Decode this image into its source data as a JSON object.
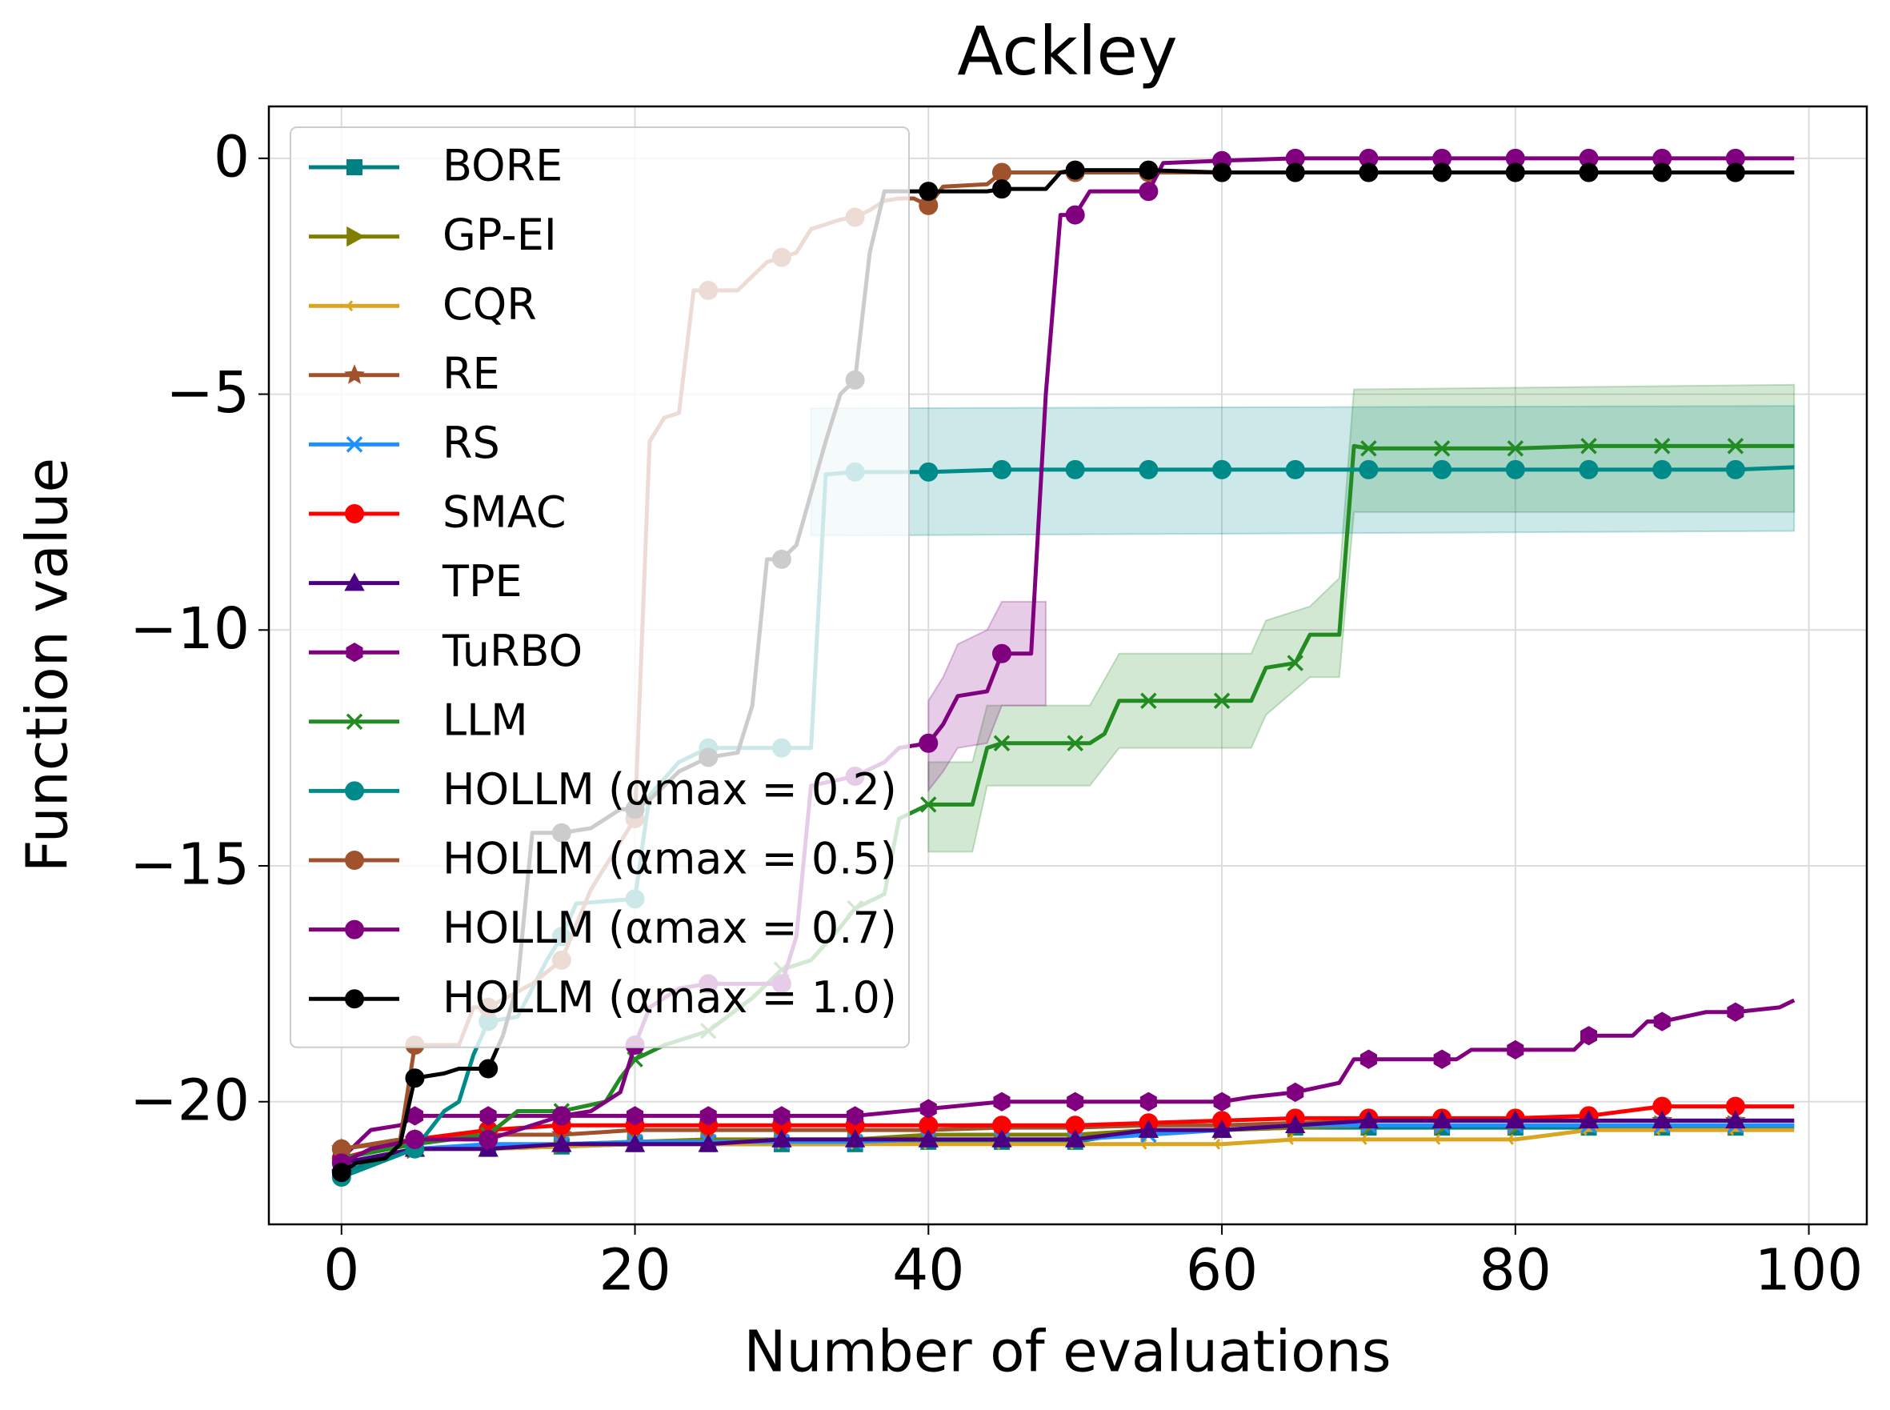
{
  "chart_data": {
    "type": "line",
    "title": "Ackley",
    "xlabel": "Number of evaluations",
    "ylabel": "Function value",
    "xlim": [
      -4.95,
      103.95
    ],
    "ylim": [
      -22.6,
      1.1
    ],
    "xticks": [
      0,
      20,
      40,
      60,
      80,
      100
    ],
    "yticks": [
      0,
      {
        "value": -5,
        "label": "−5"
      },
      {
        "value": -10,
        "label": "−10"
      },
      {
        "value": -15,
        "label": "−15"
      },
      {
        "value": -20,
        "label": "−20"
      }
    ],
    "grid": true,
    "legend": "upper left",
    "markevery": 5,
    "series": [
      {
        "name": "BORE",
        "color": "#008080",
        "marker": "s",
        "x": [
          0,
          5,
          10,
          15,
          20,
          25,
          30,
          35,
          40,
          45,
          50,
          55,
          60,
          65,
          70,
          75,
          80,
          85,
          90,
          95,
          99
        ],
        "values": [
          -21.5,
          -21.0,
          -21.0,
          -20.95,
          -20.9,
          -20.9,
          -20.9,
          -20.9,
          -20.85,
          -20.85,
          -20.85,
          -20.6,
          -20.6,
          -20.55,
          -20.55,
          -20.55,
          -20.55,
          -20.55,
          -20.55,
          -20.55,
          -20.55
        ]
      },
      {
        "name": "GP-EI",
        "color": "#808000",
        "marker": ">",
        "x": [
          0,
          5,
          10,
          15,
          20,
          25,
          30,
          35,
          40,
          45,
          50,
          55,
          60,
          65,
          70,
          75,
          80,
          85,
          90,
          95,
          99
        ],
        "values": [
          -21.3,
          -21.0,
          -20.95,
          -20.9,
          -20.85,
          -20.8,
          -20.8,
          -20.8,
          -20.7,
          -20.7,
          -20.7,
          -20.6,
          -20.6,
          -20.55,
          -20.5,
          -20.5,
          -20.5,
          -20.5,
          -20.5,
          -20.5,
          -20.5
        ]
      },
      {
        "name": "CQR",
        "color": "#DAA520",
        "marker": "<",
        "x": [
          0,
          5,
          10,
          15,
          20,
          25,
          30,
          35,
          40,
          45,
          50,
          55,
          60,
          65,
          70,
          75,
          80,
          85,
          90,
          95,
          99
        ],
        "values": [
          -21.3,
          -21.0,
          -21.0,
          -20.95,
          -20.9,
          -20.9,
          -20.9,
          -20.9,
          -20.9,
          -20.9,
          -20.9,
          -20.9,
          -20.9,
          -20.8,
          -20.8,
          -20.8,
          -20.8,
          -20.6,
          -20.6,
          -20.6,
          -20.6
        ]
      },
      {
        "name": "RE",
        "color": "#A0522D",
        "marker": "*",
        "x": [
          0,
          5,
          10,
          15,
          20,
          25,
          30,
          35,
          40,
          45,
          50,
          55,
          60,
          65,
          70,
          75,
          80,
          85,
          90,
          95,
          99
        ],
        "values": [
          -21.0,
          -20.8,
          -20.7,
          -20.7,
          -20.6,
          -20.6,
          -20.6,
          -20.6,
          -20.6,
          -20.55,
          -20.55,
          -20.5,
          -20.5,
          -20.45,
          -20.4,
          -20.4,
          -20.4,
          -20.4,
          -20.4,
          -20.4,
          -20.4
        ]
      },
      {
        "name": "RS",
        "color": "#1E90FF",
        "marker": "x",
        "x": [
          0,
          5,
          10,
          15,
          20,
          25,
          30,
          35,
          40,
          45,
          50,
          55,
          60,
          65,
          70,
          75,
          80,
          85,
          90,
          95,
          99
        ],
        "values": [
          -21.3,
          -21.0,
          -20.9,
          -20.9,
          -20.85,
          -20.85,
          -20.85,
          -20.85,
          -20.8,
          -20.8,
          -20.8,
          -20.7,
          -20.6,
          -20.5,
          -20.5,
          -20.5,
          -20.5,
          -20.5,
          -20.5,
          -20.5,
          -20.5
        ]
      },
      {
        "name": "SMAC",
        "color": "#FF0000",
        "marker": "o",
        "x": [
          0,
          5,
          10,
          15,
          20,
          25,
          30,
          35,
          40,
          45,
          50,
          55,
          60,
          65,
          70,
          75,
          80,
          85,
          90,
          95,
          99
        ],
        "values": [
          -21.2,
          -20.8,
          -20.6,
          -20.5,
          -20.5,
          -20.5,
          -20.5,
          -20.5,
          -20.5,
          -20.5,
          -20.5,
          -20.45,
          -20.4,
          -20.35,
          -20.35,
          -20.35,
          -20.35,
          -20.3,
          -20.1,
          -20.1,
          -20.1
        ]
      },
      {
        "name": "TPE",
        "color": "#4B0082",
        "marker": "^",
        "x": [
          0,
          5,
          10,
          15,
          20,
          25,
          30,
          35,
          40,
          45,
          50,
          55,
          60,
          65,
          70,
          75,
          80,
          85,
          90,
          95,
          99
        ],
        "values": [
          -21.3,
          -21.0,
          -21.0,
          -20.9,
          -20.9,
          -20.9,
          -20.8,
          -20.8,
          -20.8,
          -20.8,
          -20.8,
          -20.6,
          -20.6,
          -20.5,
          -20.4,
          -20.4,
          -20.4,
          -20.4,
          -20.4,
          -20.4,
          -20.4
        ]
      },
      {
        "name": "TuRBO",
        "color": "#800080",
        "marker": "h",
        "x": [
          0,
          1,
          2,
          4,
          5,
          10,
          15,
          20,
          25,
          30,
          35,
          40,
          45,
          50,
          55,
          60,
          62,
          65,
          68,
          69,
          70,
          75,
          76,
          77,
          80,
          84,
          85,
          88,
          89,
          90,
          93,
          95,
          98,
          99
        ],
        "values": [
          -21.2,
          -20.9,
          -20.6,
          -20.5,
          -20.3,
          -20.3,
          -20.3,
          -20.3,
          -20.3,
          -20.3,
          -20.3,
          -20.15,
          -20.0,
          -20.0,
          -20.0,
          -20.0,
          -19.9,
          -19.8,
          -19.6,
          -19.1,
          -19.1,
          -19.1,
          -19.1,
          -18.9,
          -18.9,
          -18.9,
          -18.6,
          -18.6,
          -18.3,
          -18.3,
          -18.1,
          -18.1,
          -18.0,
          -17.85
        ]
      },
      {
        "name": "LLM",
        "color": "#228B22",
        "marker": "x",
        "x": [
          0,
          5,
          10,
          12,
          15,
          18,
          19,
          20,
          22,
          25,
          28,
          30,
          32,
          34,
          35,
          37,
          38,
          40,
          43,
          44,
          45,
          50,
          51,
          52,
          53,
          55,
          60,
          62,
          63,
          65,
          66,
          68,
          69,
          70,
          75,
          80,
          85,
          90,
          95,
          99
        ],
        "values": [
          -21.2,
          -20.9,
          -20.7,
          -20.2,
          -20.2,
          -20.0,
          -19.5,
          -19.1,
          -18.8,
          -18.5,
          -17.8,
          -17.2,
          -17.0,
          -16.3,
          -15.9,
          -15.6,
          -14.0,
          -13.7,
          -13.7,
          -12.5,
          -12.4,
          -12.4,
          -12.4,
          -12.2,
          -11.5,
          -11.5,
          -11.5,
          -11.5,
          -10.8,
          -10.7,
          -10.1,
          -10.1,
          -6.1,
          -6.15,
          -6.15,
          -6.15,
          -6.1,
          -6.1,
          -6.1,
          -6.1
        ],
        "band": {
          "x": [
            40,
            43,
            44,
            51,
            53,
            62,
            63,
            66,
            68,
            69,
            99
          ],
          "upper": [
            -12.8,
            -12.8,
            -11.6,
            -11.6,
            -10.5,
            -10.5,
            -9.8,
            -9.5,
            -8.9,
            -4.9,
            -4.8
          ],
          "lower": [
            -14.7,
            -14.7,
            -13.3,
            -13.3,
            -12.5,
            -12.5,
            -11.8,
            -11.0,
            -11.0,
            -7.5,
            -7.5
          ]
        }
      },
      {
        "name": "HOLLM (αmax = 0.2)",
        "color": "#008B8B",
        "marker": "o",
        "x": [
          0,
          5,
          7,
          8,
          9,
          10,
          12,
          14,
          15,
          16,
          20,
          21,
          23,
          25,
          30,
          32,
          33,
          35,
          40,
          45,
          50,
          55,
          60,
          65,
          70,
          75,
          80,
          85,
          90,
          95,
          99
        ],
        "values": [
          -21.6,
          -21.0,
          -20.2,
          -20.0,
          -19.0,
          -18.3,
          -18.2,
          -17.0,
          -16.5,
          -15.8,
          -15.7,
          -13.5,
          -12.8,
          -12.5,
          -12.5,
          -12.5,
          -6.7,
          -6.65,
          -6.65,
          -6.6,
          -6.6,
          -6.6,
          -6.6,
          -6.6,
          -6.6,
          -6.6,
          -6.6,
          -6.6,
          -6.6,
          -6.6,
          -6.55
        ],
        "band": {
          "x": [
            32,
            99
          ],
          "upper": [
            -5.3,
            -5.25
          ],
          "lower": [
            -8.0,
            -7.9
          ]
        }
      },
      {
        "name": "HOLLM (αmax = 0.5)",
        "color": "#A0522D",
        "marker": "o",
        "x": [
          0,
          4,
          5,
          8,
          9,
          10,
          13,
          15,
          17,
          19,
          20,
          21,
          22,
          23,
          24,
          25,
          27,
          28,
          29,
          30,
          31,
          32,
          34,
          35,
          36,
          37,
          38,
          39,
          40,
          41,
          44,
          45,
          50,
          55,
          60,
          65,
          70,
          75,
          80,
          85,
          90,
          95,
          99
        ],
        "values": [
          -21.0,
          -20.8,
          -18.8,
          -18.8,
          -18.0,
          -18.0,
          -17.5,
          -17.0,
          -15.5,
          -14.5,
          -14.0,
          -6.0,
          -5.5,
          -5.4,
          -2.8,
          -2.8,
          -2.8,
          -2.5,
          -2.2,
          -2.1,
          -2.0,
          -1.5,
          -1.3,
          -1.25,
          -1.1,
          -0.9,
          -0.85,
          -0.85,
          -1.0,
          -0.6,
          -0.55,
          -0.3,
          -0.3,
          -0.3,
          -0.3,
          -0.3,
          -0.3,
          -0.3,
          -0.3,
          -0.3,
          -0.3,
          -0.3,
          -0.3
        ]
      },
      {
        "name": "HOLLM (αmax = 0.7)",
        "color": "#800080",
        "marker": "o",
        "x": [
          0,
          2,
          5,
          10,
          15,
          17,
          19,
          20,
          21,
          23,
          25,
          30,
          31,
          32,
          35,
          37,
          38,
          40,
          41,
          42,
          44,
          45,
          47,
          48,
          49,
          50,
          51,
          55,
          56,
          60,
          65,
          70,
          75,
          80,
          85,
          90,
          95,
          99
        ],
        "values": [
          -21.3,
          -21.0,
          -20.8,
          -20.8,
          -20.3,
          -20.2,
          -19.8,
          -18.8,
          -18.0,
          -17.6,
          -17.5,
          -17.5,
          -16.5,
          -13.3,
          -13.1,
          -12.8,
          -12.5,
          -12.4,
          -12.0,
          -11.4,
          -11.3,
          -10.5,
          -10.5,
          -5.0,
          -1.2,
          -1.2,
          -0.7,
          -0.7,
          -0.1,
          -0.05,
          0,
          0,
          0,
          0,
          0,
          0,
          0,
          0
        ],
        "band": {
          "x": [
            40,
            41,
            42,
            44,
            45,
            47,
            48
          ],
          "upper": [
            -11.5,
            -11.0,
            -10.3,
            -10.0,
            -9.4,
            -9.4,
            -9.4
          ],
          "lower": [
            -13.4,
            -13.0,
            -12.5,
            -12.4,
            -11.6,
            -11.6,
            -11.6
          ]
        }
      },
      {
        "name": "HOLLM (αmax = 1.0)",
        "color": "#000000",
        "marker": "o",
        "x": [
          0,
          1,
          3,
          4,
          5,
          7,
          8,
          10,
          11,
          12,
          13,
          15,
          17,
          19,
          20,
          21,
          23,
          25,
          27,
          28,
          29,
          30,
          31,
          33,
          34,
          35,
          36,
          37,
          40,
          44,
          45,
          48,
          49,
          50,
          55,
          60,
          65,
          70,
          75,
          80,
          85,
          90,
          95,
          99
        ],
        "values": [
          -21.5,
          -21.3,
          -21.2,
          -20.9,
          -19.5,
          -19.4,
          -19.3,
          -19.3,
          -18.6,
          -17.5,
          -14.3,
          -14.3,
          -14.2,
          -13.8,
          -13.8,
          -13.6,
          -13.0,
          -12.7,
          -12.6,
          -11.6,
          -8.5,
          -8.5,
          -8.2,
          -6.0,
          -5.0,
          -4.7,
          -2.0,
          -0.7,
          -0.7,
          -0.7,
          -0.65,
          -0.65,
          -0.3,
          -0.25,
          -0.25,
          -0.3,
          -0.3,
          -0.3,
          -0.3,
          -0.3,
          -0.3,
          -0.3,
          -0.3,
          -0.3
        ]
      }
    ]
  }
}
